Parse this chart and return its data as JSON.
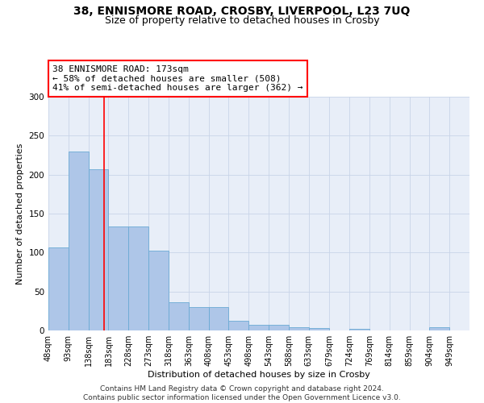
{
  "title": "38, ENNISMORE ROAD, CROSBY, LIVERPOOL, L23 7UQ",
  "subtitle": "Size of property relative to detached houses in Crosby",
  "xlabel": "Distribution of detached houses by size in Crosby",
  "ylabel": "Number of detached properties",
  "bar_color": "#aec6e8",
  "bar_edge_color": "#6aaad4",
  "grid_color": "#c8d4e8",
  "background_color": "#e8eef8",
  "red_line_x": 173,
  "annotation_line1": "38 ENNISMORE ROAD: 173sqm",
  "annotation_line2": "← 58% of detached houses are smaller (508)",
  "annotation_line3": "41% of semi-detached houses are larger (362) →",
  "annotation_box_color": "white",
  "annotation_box_edge": "red",
  "categories": [
    "48sqm",
    "93sqm",
    "138sqm",
    "183sqm",
    "228sqm",
    "273sqm",
    "318sqm",
    "363sqm",
    "408sqm",
    "453sqm",
    "498sqm",
    "543sqm",
    "588sqm",
    "633sqm",
    "679sqm",
    "724sqm",
    "769sqm",
    "814sqm",
    "859sqm",
    "904sqm",
    "949sqm"
  ],
  "bin_edges": [
    48,
    93,
    138,
    183,
    228,
    273,
    318,
    363,
    408,
    453,
    498,
    543,
    588,
    633,
    679,
    724,
    769,
    814,
    859,
    904,
    949,
    994
  ],
  "values": [
    107,
    230,
    207,
    133,
    133,
    102,
    36,
    30,
    30,
    12,
    7,
    7,
    4,
    3,
    0,
    2,
    0,
    0,
    0,
    4,
    0
  ],
  "ylim": [
    0,
    300
  ],
  "yticks": [
    0,
    50,
    100,
    150,
    200,
    250,
    300
  ],
  "footer_text": "Contains HM Land Registry data © Crown copyright and database right 2024.\nContains public sector information licensed under the Open Government Licence v3.0.",
  "title_fontsize": 10,
  "subtitle_fontsize": 9,
  "annotation_fontsize": 8,
  "tick_fontsize": 7,
  "ylabel_fontsize": 8,
  "xlabel_fontsize": 8,
  "footer_fontsize": 6.5
}
